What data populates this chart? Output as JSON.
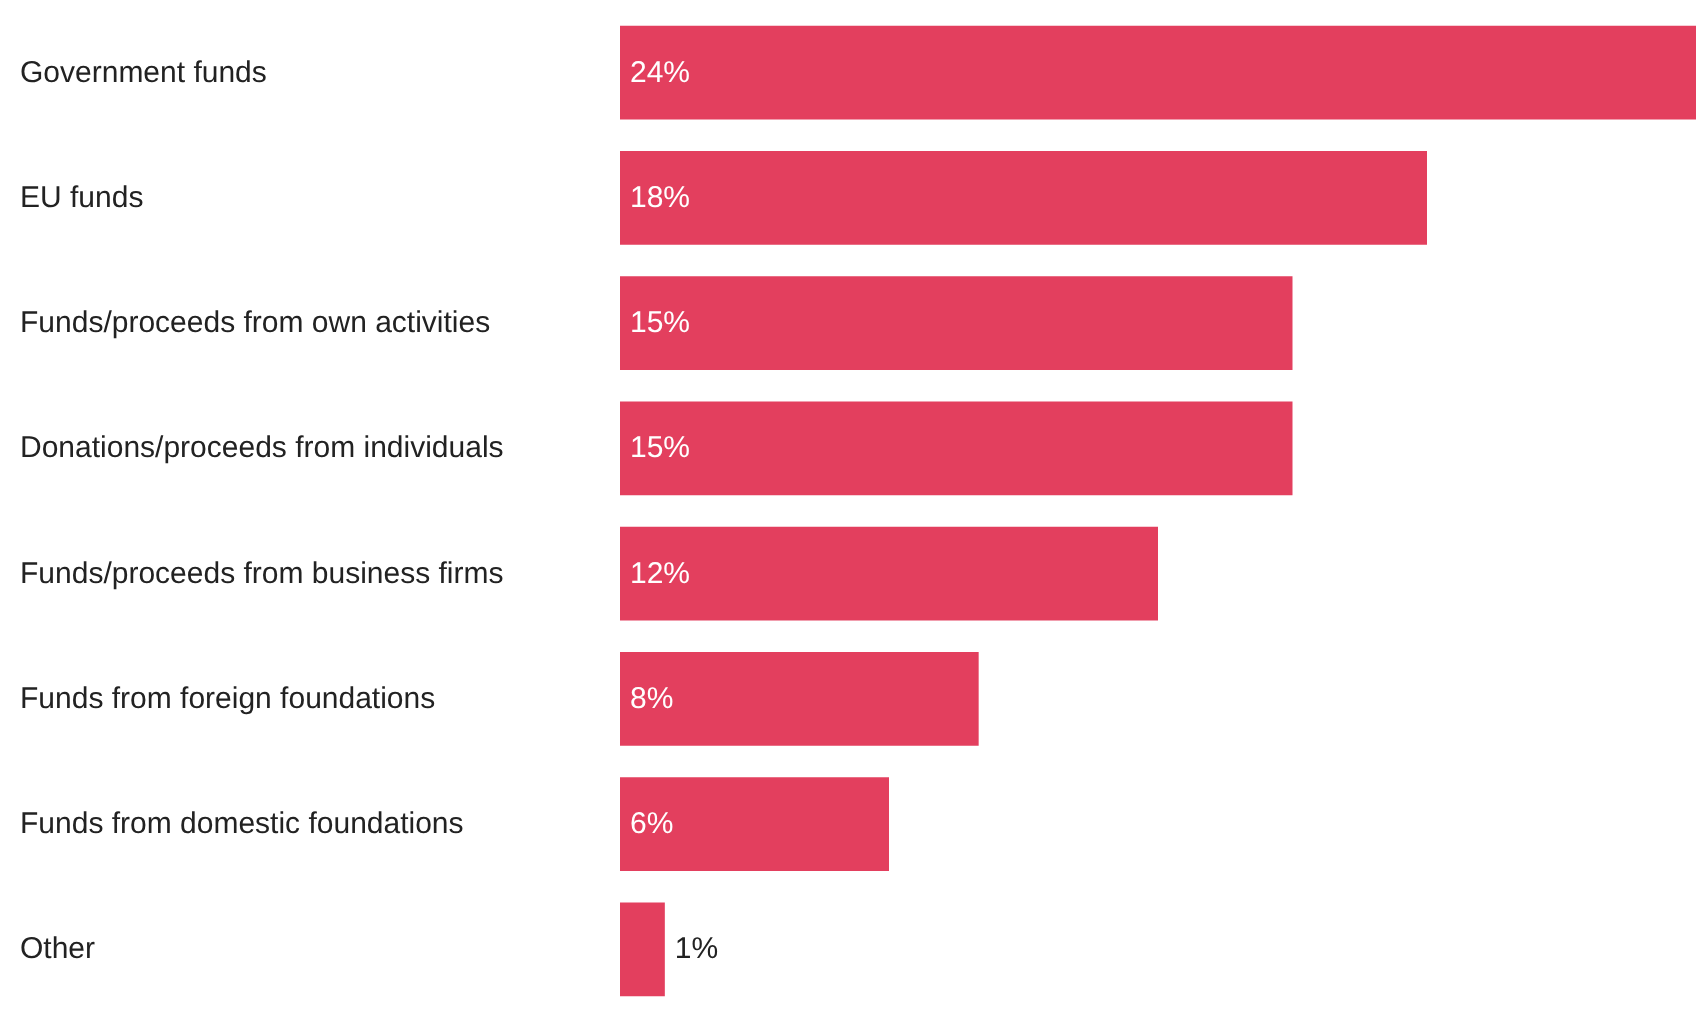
{
  "chart_data": {
    "type": "bar",
    "orientation": "horizontal",
    "color": "#e33f5e",
    "categories": [
      "Government funds",
      "EU funds",
      "Funds/proceeds from own activities",
      "Donations/proceeds from individuals",
      "Funds/proceeds from business firms",
      "Funds from foreign foundations",
      "Funds from domestic foundations",
      "Other"
    ],
    "values": [
      24,
      18,
      15,
      15,
      12,
      8,
      6,
      1
    ],
    "value_labels": [
      "24%",
      "18%",
      "15%",
      "15%",
      "12%",
      "8%",
      "6%",
      "1%"
    ],
    "grid": false
  }
}
